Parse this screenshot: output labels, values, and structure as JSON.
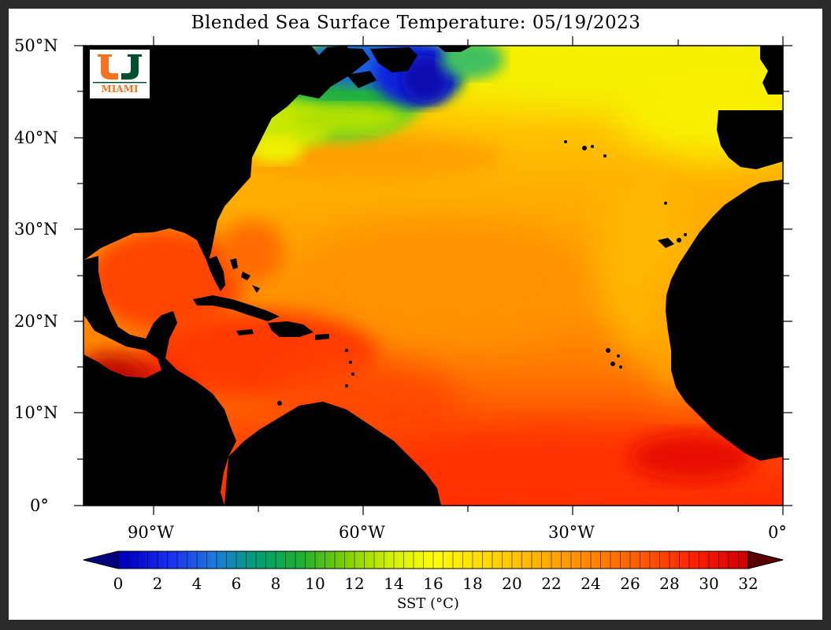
{
  "title": "Blended Sea Surface Temperature: 05/19/2023",
  "logo": {
    "text": "MIAMI",
    "icon": "um-logo-icon",
    "colors": {
      "green": "#005030",
      "orange": "#f47321"
    }
  },
  "chart_data": {
    "type": "heatmap",
    "title": "Blended Sea Surface Temperature: 05/19/2023",
    "y_ticks": [
      "50°N",
      "40°N",
      "30°N",
      "20°N",
      "10°N",
      "0°"
    ],
    "x_ticks": [
      "90°W",
      "60°W",
      "30°W",
      "0°"
    ],
    "lat_range": [
      0,
      50
    ],
    "lon_range": [
      -100,
      0
    ],
    "colorbar": {
      "label": "SST (°C)",
      "range": [
        0,
        32
      ],
      "ticks": [
        "0",
        "2",
        "4",
        "6",
        "8",
        "10",
        "12",
        "14",
        "16",
        "18",
        "20",
        "22",
        "24",
        "26",
        "28",
        "30",
        "32"
      ],
      "extend": "both"
    },
    "land_color": "#000000"
  }
}
